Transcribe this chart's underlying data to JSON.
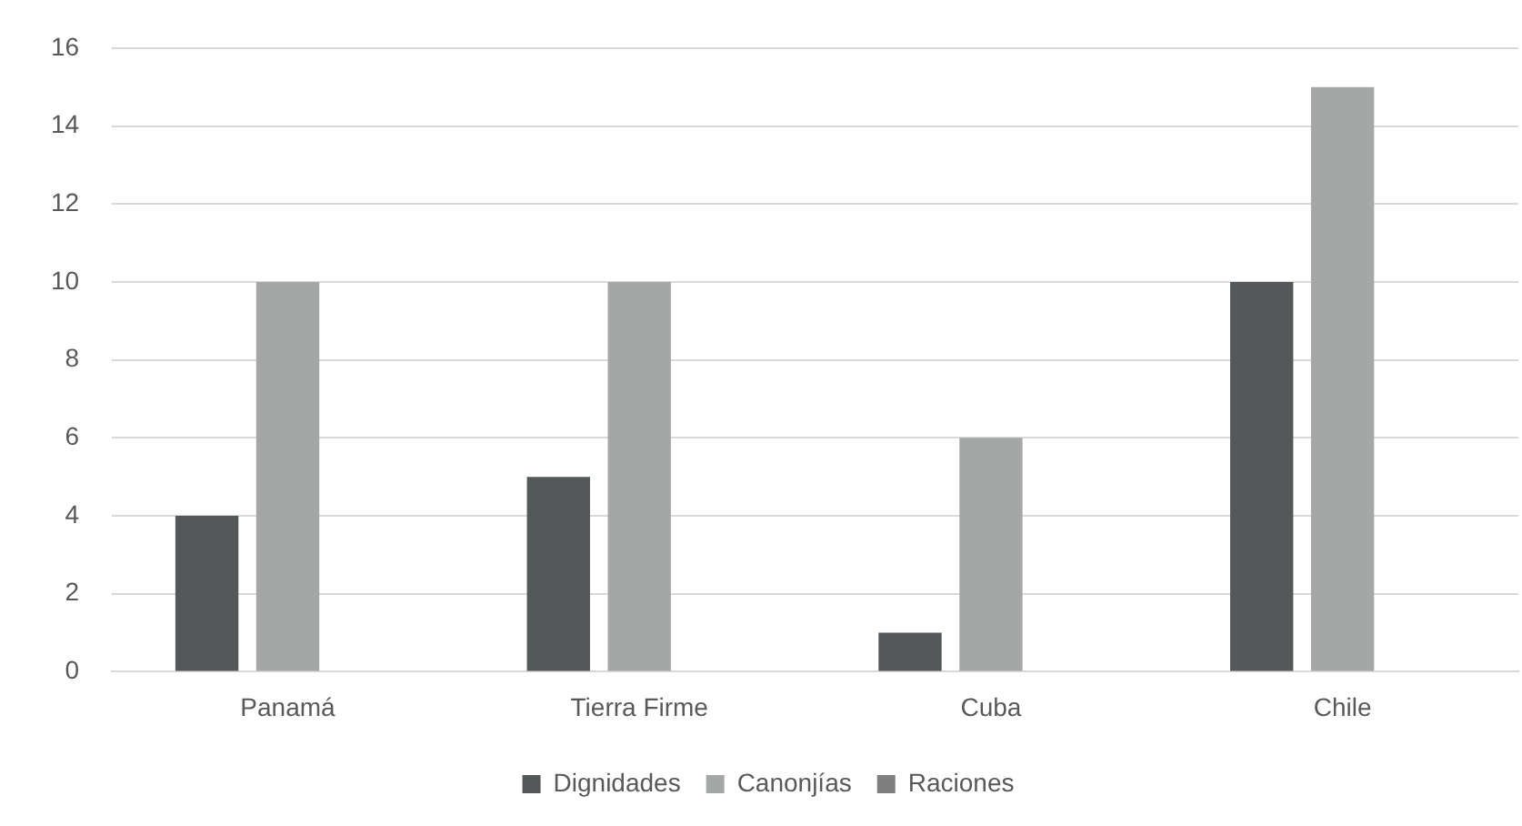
{
  "chart_data": {
    "type": "bar",
    "categories": [
      "Panamá",
      "Tierra Firme",
      "Cuba",
      "Chile"
    ],
    "series": [
      {
        "name": "Dignidades",
        "color": "#555858",
        "values": [
          4,
          5,
          1,
          10
        ]
      },
      {
        "name": "Canonjías",
        "color": "#a5a7a7",
        "values": [
          10,
          10,
          6,
          15
        ]
      },
      {
        "name": "Raciones",
        "color": "#7f7f7f",
        "values": [
          0,
          0,
          0,
          0
        ]
      }
    ],
    "ylim": [
      0,
      16
    ],
    "yticks": [
      0,
      2,
      4,
      6,
      8,
      10,
      12,
      14,
      16
    ],
    "grid": "y",
    "legend": "bottom"
  }
}
